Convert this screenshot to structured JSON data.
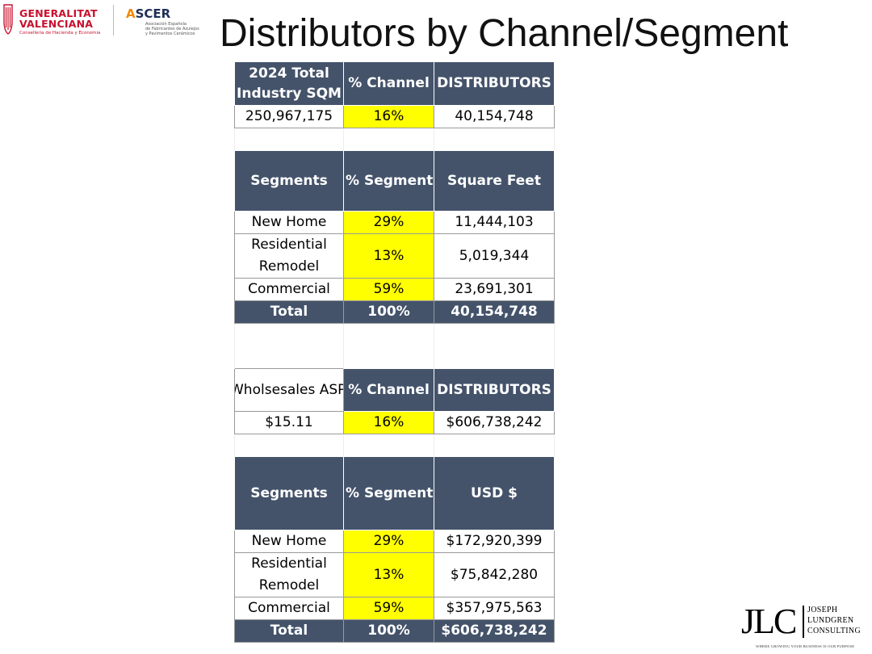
{
  "logos": {
    "generalitat": {
      "line1": "GENERALITAT",
      "line2": "VALENCIANA",
      "sub": "Conselleria de Hacienda y Economia",
      "color": "#c8102e"
    },
    "ascer": {
      "name_a": "A",
      "name_rest": "SCER",
      "sub1": "Asociación Española",
      "sub2": "de Fabricantes de Azulejos",
      "sub3": "y Pavimentos Cerámicos"
    },
    "jlc": {
      "mark": "JLC",
      "line1": "JOSEPH",
      "line2": "LUNDGREN",
      "line3": "CONSULTING",
      "tagline": "WHERE GROWING YOUR BUSINESS IS OUR PURPOSE"
    }
  },
  "title": "Distributors by Channel/Segment",
  "colors": {
    "header_fill": "#44536a",
    "highlight": "#ffff00"
  },
  "sqm_summary": {
    "headers": [
      "2024 Total Industry SQM",
      "% Channel",
      "DISTRIBUTORS"
    ],
    "values": [
      "250,967,175",
      "16%",
      "40,154,748"
    ]
  },
  "sqft_segments": {
    "headers": [
      "Segments",
      "% Segment",
      "Square Feet"
    ],
    "rows": [
      [
        "New Home",
        "29%",
        "11,444,103"
      ],
      [
        "Residential Remodel",
        "13%",
        "5,019,344"
      ],
      [
        "Commercial",
        "59%",
        "23,691,301"
      ]
    ],
    "total": [
      "Total",
      "100%",
      "40,154,748"
    ]
  },
  "usd_summary": {
    "headers": [
      "Wholsesales ASP",
      "% Channel",
      "DISTRIBUTORS"
    ],
    "values": [
      "$15.11",
      "16%",
      "$606,738,242"
    ]
  },
  "usd_segments": {
    "headers": [
      "Segments",
      "% Segment",
      "USD $"
    ],
    "rows": [
      [
        "New Home",
        "29%",
        "$172,920,399"
      ],
      [
        "Residential Remodel",
        "13%",
        "$75,842,280"
      ],
      [
        "Commercial",
        "59%",
        "$357,975,563"
      ]
    ],
    "total": [
      "Total",
      "100%",
      "$606,738,242"
    ]
  }
}
